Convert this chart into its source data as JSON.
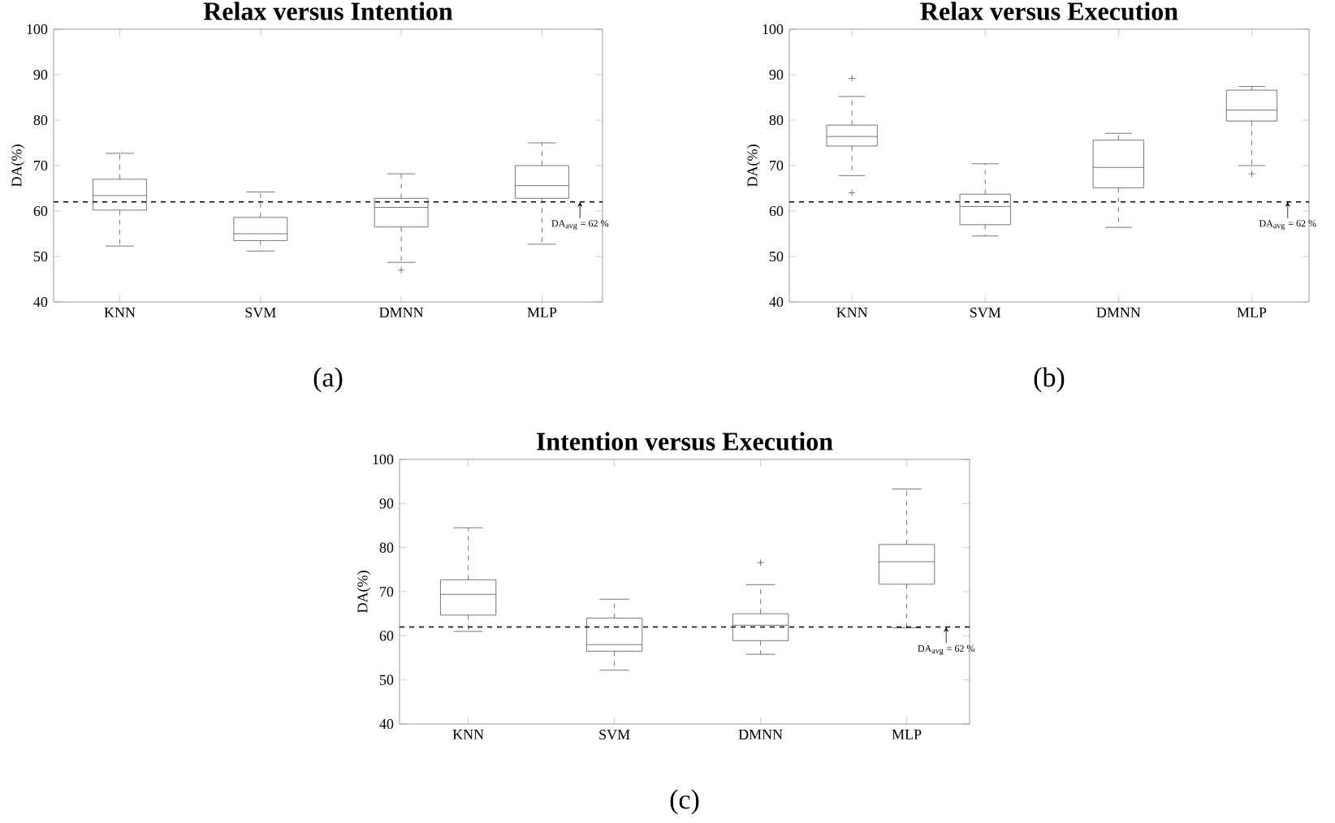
{
  "chart_data": [
    {
      "type": "box",
      "title": "Relax versus Intention",
      "ylabel": "DA(%)",
      "categories": [
        "KNN",
        "SVM",
        "DMNN",
        "MLP"
      ],
      "color": "#555555",
      "ylim": [
        40,
        100
      ],
      "yticks": [
        40,
        50,
        60,
        70,
        80,
        90,
        100
      ],
      "boxes": [
        {
          "low": 52.3,
          "q1": 60.2,
          "median": 63.4,
          "q3": 67,
          "high": 72.7
        },
        {
          "low": 51.2,
          "q1": 53.5,
          "median": 55,
          "q3": 58.6,
          "high": 64.2
        },
        {
          "low": 48.7,
          "q1": 56.5,
          "median": 60.8,
          "q3": 62.8,
          "high": 68.2,
          "outliers": [
            47
          ]
        },
        {
          "low": 52.7,
          "q1": 62.8,
          "median": 65.6,
          "q3": 70,
          "high": 75
        }
      ],
      "ref_lines": [
        {
          "axis": "y",
          "value": 62,
          "color": "#000000",
          "line_style": "dashed"
        }
      ],
      "annotations": [
        {
          "text": "DA$_{avg}$ = 62 %",
          "x": "MLP",
          "y": 62
        },
        "(a)"
      ]
    },
    {
      "type": "box",
      "title": "Relax versus Execution",
      "ylabel": "DA(%)",
      "categories": [
        "KNN",
        "SVM",
        "DMNN",
        "MLP"
      ],
      "color": "#555555",
      "ylim": [
        40,
        100
      ],
      "yticks": [
        40,
        50,
        60,
        70,
        80,
        90,
        100
      ],
      "boxes": [
        {
          "low": 67.8,
          "q1": 74.3,
          "median": 76.4,
          "q3": 78.9,
          "high": 85.2,
          "outliers": [
            89.2,
            64
          ]
        },
        {
          "low": 54.5,
          "q1": 57,
          "median": 61,
          "q3": 63.7,
          "high": 70.4
        },
        {
          "low": 56.4,
          "q1": 65.1,
          "median": 69.6,
          "q3": 75.6,
          "high": 77.1
        },
        {
          "low": 70,
          "q1": 79.8,
          "median": 82.2,
          "q3": 86.6,
          "high": 87.4,
          "outliers": [
            68.2
          ]
        }
      ],
      "ref_lines": [
        {
          "axis": "y",
          "value": 62,
          "color": "#000000",
          "line_style": "dashed"
        }
      ],
      "annotations": [
        {
          "text": "DA$_{avg}$ = 62 %",
          "x": "MLP",
          "y": 62
        },
        "(b)"
      ]
    },
    {
      "type": "box",
      "title": "Intention versus Execution",
      "ylabel": "DA(%)",
      "categories": [
        "KNN",
        "SVM",
        "DMNN",
        "MLP"
      ],
      "color": "#555555",
      "ylim": [
        40,
        100
      ],
      "yticks": [
        40,
        50,
        60,
        70,
        80,
        90,
        100
      ],
      "boxes": [
        {
          "low": 61,
          "q1": 64.7,
          "median": 69.4,
          "q3": 72.7,
          "high": 84.5
        },
        {
          "low": 52.2,
          "q1": 56.5,
          "median": 58,
          "q3": 64,
          "high": 68.3
        },
        {
          "low": 55.8,
          "q1": 58.9,
          "median": 62.4,
          "q3": 65,
          "high": 71.6,
          "outliers": [
            76.6
          ]
        },
        {
          "low": 61.8,
          "q1": 71.7,
          "median": 76.8,
          "q3": 80.7,
          "high": 93.3
        }
      ],
      "ref_lines": [
        {
          "axis": "y",
          "value": 62,
          "color": "#000000",
          "line_style": "dashed"
        }
      ],
      "annotations": [
        {
          "text": "DA$_{avg}$ = 62 %",
          "x": "MLP",
          "y": 62
        },
        "(c)"
      ]
    }
  ]
}
